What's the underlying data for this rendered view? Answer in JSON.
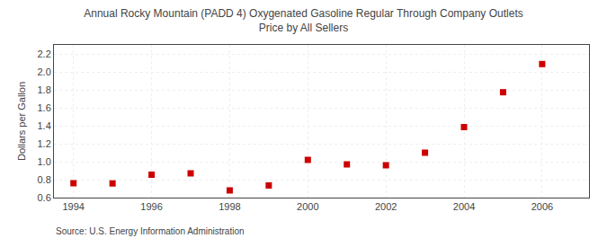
{
  "chart_data": {
    "type": "scatter",
    "title": "Annual Rocky Mountain (PADD 4) Oxygenated Gasoline Regular Through Company Outlets\nPrice by All Sellers",
    "ylabel": "Dollars per Gallon",
    "annotations": [
      "Source: U.S. Energy Information Administration"
    ],
    "x": [
      1994,
      1995,
      1996,
      1997,
      1998,
      1999,
      2000,
      2001,
      2002,
      2003,
      2004,
      2005,
      2006
    ],
    "values": [
      0.76,
      0.758,
      0.855,
      0.87,
      0.68,
      0.735,
      1.02,
      0.97,
      0.96,
      1.1,
      1.385,
      1.773,
      2.087
    ],
    "color": "#cc0000",
    "marker": "square",
    "xlim": [
      1993.5,
      2007.2
    ],
    "ylim": [
      0.6,
      2.3
    ],
    "xticks": [
      1994,
      1996,
      1998,
      2000,
      2002,
      2004,
      2006
    ],
    "yticks": [
      0.6,
      0.8,
      {
        "value": 1.0,
        "label": "1.0"
      },
      1.2,
      1.4,
      1.6,
      1.8,
      {
        "value": 2.0,
        "label": "2.0"
      },
      2.2
    ],
    "grid": true
  }
}
